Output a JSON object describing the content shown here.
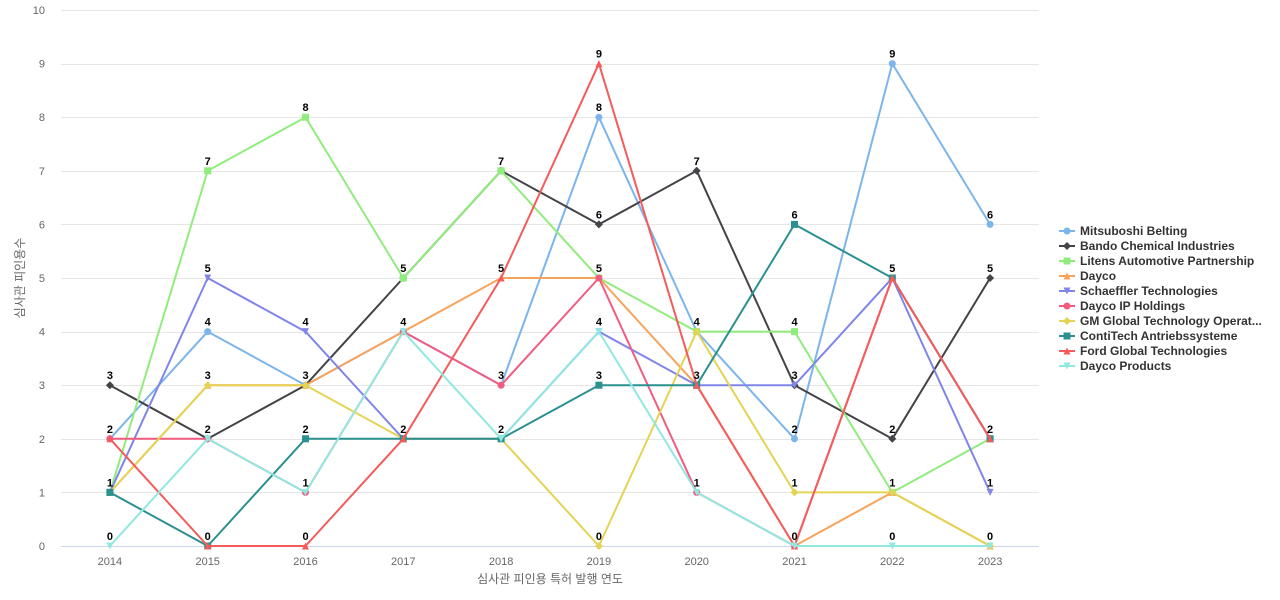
{
  "chart_data": {
    "type": "line",
    "title": "",
    "xlabel": "심사관 피인용 특허 발행 연도",
    "ylabel": "심사관 피인용수",
    "ylim": [
      0,
      10
    ],
    "yticks": [
      0,
      1,
      2,
      3,
      4,
      5,
      6,
      7,
      8,
      9,
      10
    ],
    "grid": true,
    "legend_position": "right",
    "categories": [
      "2014",
      "2015",
      "2016",
      "2017",
      "2018",
      "2019",
      "2020",
      "2021",
      "2022",
      "2023"
    ],
    "series": [
      {
        "name": "Mitsuboshi Belting",
        "color": "#7cb5ec",
        "marker": "circle",
        "values": [
          2,
          4,
          3,
          4,
          3,
          8,
          4,
          2,
          9,
          6
        ]
      },
      {
        "name": "Bando Chemical Industries",
        "color": "#434348",
        "marker": "diamond",
        "values": [
          3,
          2,
          3,
          5,
          7,
          6,
          7,
          3,
          2,
          5
        ]
      },
      {
        "name": "Litens Automotive Partnership",
        "color": "#90ed7d",
        "marker": "square",
        "values": [
          1,
          7,
          8,
          5,
          7,
          5,
          4,
          4,
          1,
          2
        ]
      },
      {
        "name": "Dayco",
        "color": "#f7a35c",
        "marker": "triangle",
        "values": [
          1,
          3,
          3,
          4,
          5,
          5,
          3,
          0,
          1,
          0
        ]
      },
      {
        "name": "Schaeffler Technologies",
        "color": "#8085e9",
        "marker": "triangle-down",
        "values": [
          1,
          5,
          4,
          2,
          2,
          4,
          3,
          3,
          5,
          1
        ]
      },
      {
        "name": "Dayco IP Holdings",
        "color": "#f15c80",
        "marker": "circle",
        "values": [
          2,
          2,
          1,
          4,
          3,
          5,
          1,
          0,
          5,
          2
        ]
      },
      {
        "name": "GM Global Technology Operat...",
        "color": "#e4d354",
        "marker": "diamond",
        "values": [
          1,
          3,
          3,
          2,
          2,
          0,
          4,
          1,
          1,
          0
        ]
      },
      {
        "name": "ContiTech Antriebssysteme",
        "color": "#2b908f",
        "marker": "square",
        "values": [
          1,
          0,
          2,
          2,
          2,
          3,
          3,
          6,
          5,
          2
        ]
      },
      {
        "name": "Ford Global Technologies",
        "color": "#f45b5b",
        "marker": "triangle",
        "values": [
          2,
          0,
          0,
          2,
          5,
          9,
          3,
          0,
          5,
          2
        ]
      },
      {
        "name": "Dayco Products",
        "color": "#91e8e1",
        "marker": "triangle-down",
        "values": [
          0,
          2,
          1,
          4,
          2,
          4,
          1,
          0,
          0,
          0
        ]
      }
    ],
    "data_labels": [
      {
        "category": "2014",
        "value": 3,
        "text": "3"
      },
      {
        "category": "2014",
        "value": 2,
        "text": "2"
      },
      {
        "category": "2014",
        "value": 1,
        "text": "1"
      },
      {
        "category": "2014",
        "value": 0,
        "text": "0"
      },
      {
        "category": "2015",
        "value": 7,
        "text": "7"
      },
      {
        "category": "2015",
        "value": 5,
        "text": "5"
      },
      {
        "category": "2015",
        "value": 4,
        "text": "4"
      },
      {
        "category": "2015",
        "value": 3,
        "text": "3"
      },
      {
        "category": "2015",
        "value": 2,
        "text": "2"
      },
      {
        "category": "2015",
        "value": 0,
        "text": "0"
      },
      {
        "category": "2016",
        "value": 8,
        "text": "8"
      },
      {
        "category": "2016",
        "value": 4,
        "text": "4"
      },
      {
        "category": "2016",
        "value": 3,
        "text": "3"
      },
      {
        "category": "2016",
        "value": 2,
        "text": "2"
      },
      {
        "category": "2016",
        "value": 1,
        "text": "1"
      },
      {
        "category": "2016",
        "value": 0,
        "text": "0"
      },
      {
        "category": "2017",
        "value": 5,
        "text": "5"
      },
      {
        "category": "2017",
        "value": 4,
        "text": "4"
      },
      {
        "category": "2017",
        "value": 2,
        "text": "2"
      },
      {
        "category": "2018",
        "value": 7,
        "text": "7"
      },
      {
        "category": "2018",
        "value": 5,
        "text": "5"
      },
      {
        "category": "2018",
        "value": 3,
        "text": "3"
      },
      {
        "category": "2018",
        "value": 2,
        "text": "2"
      },
      {
        "category": "2019",
        "value": 9,
        "text": "9"
      },
      {
        "category": "2019",
        "value": 8,
        "text": "8"
      },
      {
        "category": "2019",
        "value": 6,
        "text": "6"
      },
      {
        "category": "2019",
        "value": 5,
        "text": "5"
      },
      {
        "category": "2019",
        "value": 4,
        "text": "4"
      },
      {
        "category": "2019",
        "value": 3,
        "text": "3"
      },
      {
        "category": "2019",
        "value": 0,
        "text": "0"
      },
      {
        "category": "2020",
        "value": 7,
        "text": "7"
      },
      {
        "category": "2020",
        "value": 4,
        "text": "4"
      },
      {
        "category": "2020",
        "value": 3,
        "text": "3"
      },
      {
        "category": "2020",
        "value": 1,
        "text": "1"
      },
      {
        "category": "2021",
        "value": 6,
        "text": "6"
      },
      {
        "category": "2021",
        "value": 4,
        "text": "4"
      },
      {
        "category": "2021",
        "value": 3,
        "text": "3"
      },
      {
        "category": "2021",
        "value": 2,
        "text": "2"
      },
      {
        "category": "2021",
        "value": 1,
        "text": "1"
      },
      {
        "category": "2021",
        "value": 0,
        "text": "0"
      },
      {
        "category": "2022",
        "value": 9,
        "text": "9"
      },
      {
        "category": "2022",
        "value": 5,
        "text": "5"
      },
      {
        "category": "2022",
        "value": 2,
        "text": "2"
      },
      {
        "category": "2022",
        "value": 1,
        "text": "1"
      },
      {
        "category": "2022",
        "value": 0,
        "text": "0"
      },
      {
        "category": "2023",
        "value": 6,
        "text": "6"
      },
      {
        "category": "2023",
        "value": 5,
        "text": "5"
      },
      {
        "category": "2023",
        "value": 2,
        "text": "2"
      },
      {
        "category": "2023",
        "value": 1,
        "text": "1"
      },
      {
        "category": "2023",
        "value": 0,
        "text": "0"
      }
    ]
  }
}
